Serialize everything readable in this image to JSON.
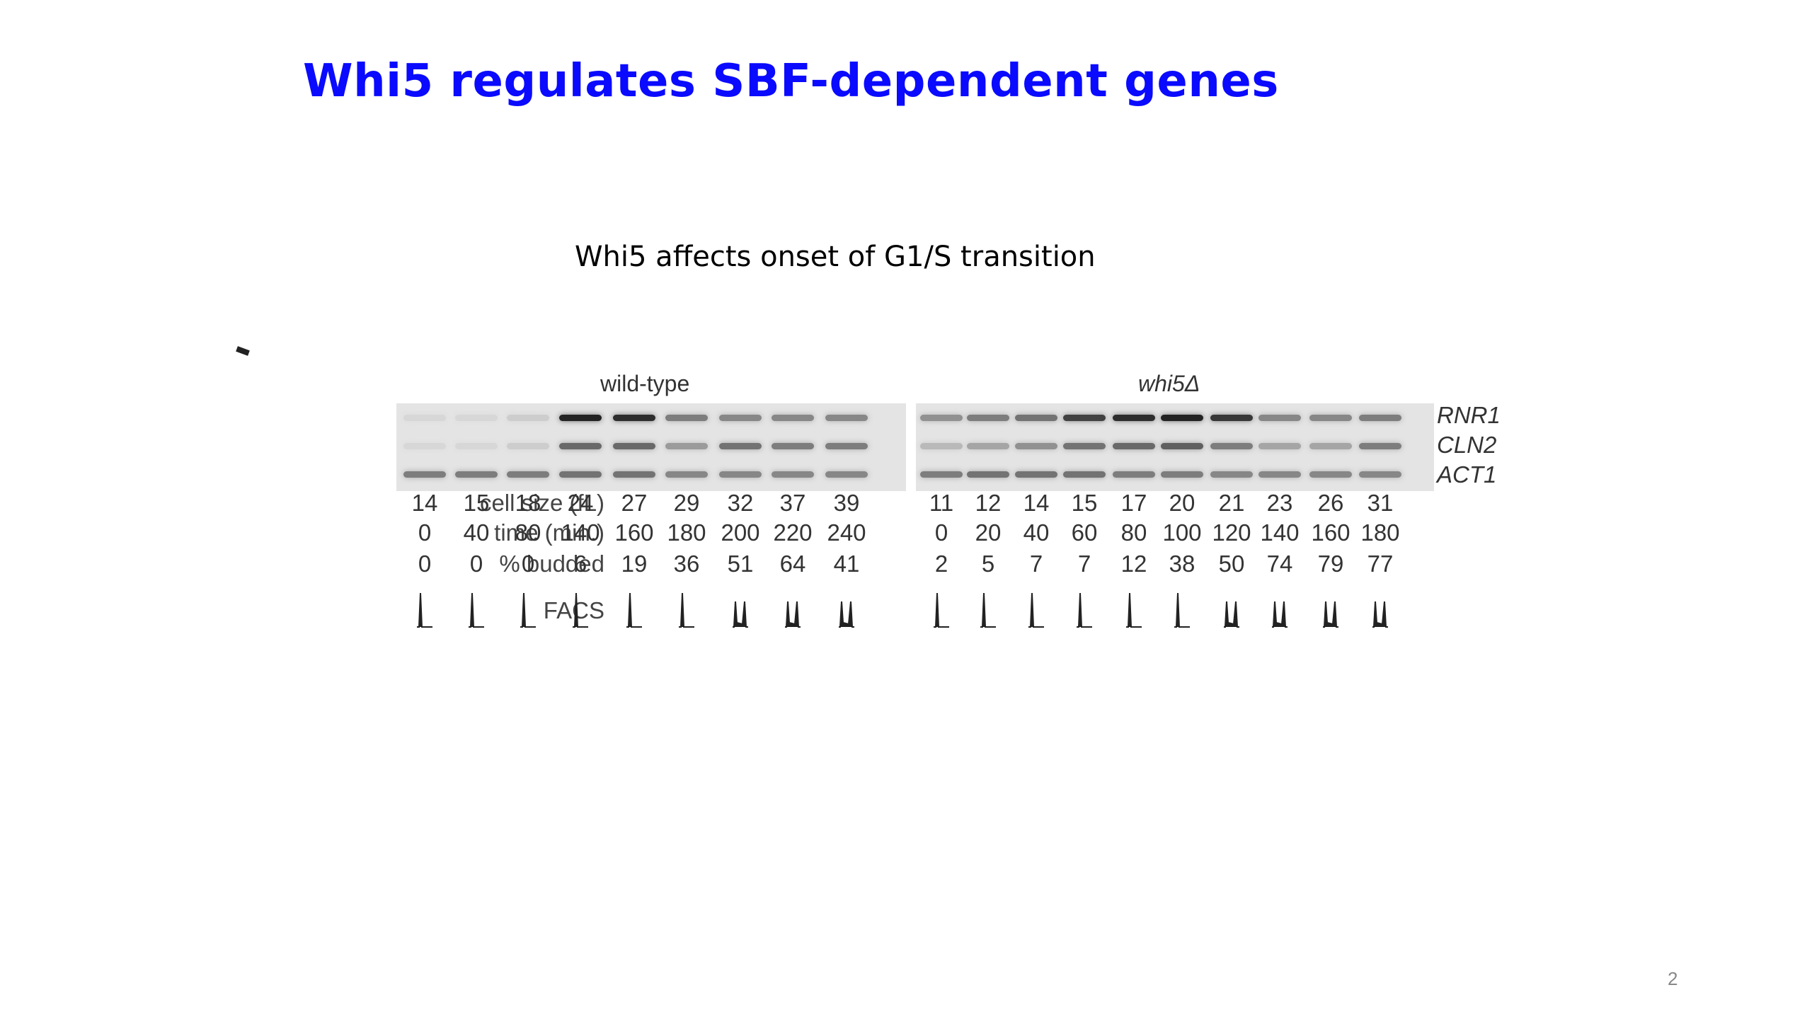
{
  "slide": {
    "title": "Whi5 regulates SBF-dependent genes",
    "subtitle": "Whi5 affects onset of G1/S transition",
    "page_number": "2"
  },
  "figure": {
    "groups": [
      {
        "label": "wild-type",
        "italic": false
      },
      {
        "label": "whi5Δ",
        "italic": true
      }
    ],
    "genes": [
      "RNR1",
      "CLN2",
      "ACT1"
    ],
    "row_labels": {
      "cell_size": "cell size (fL)",
      "time": "time (min.)",
      "budded": "% budded",
      "facs": "FACS"
    },
    "wild_type": {
      "cell_size": [
        "14",
        "15",
        "18",
        "24",
        "27",
        "29",
        "32",
        "37",
        "39"
      ],
      "time": [
        "0",
        "40",
        "80",
        "140",
        "160",
        "180",
        "200",
        "220",
        "240"
      ],
      "budded": [
        "0",
        "0",
        "0",
        "6",
        "19",
        "36",
        "51",
        "64",
        "41"
      ],
      "band_intensity": {
        "RNR1": [
          0.05,
          0.05,
          0.1,
          0.95,
          0.9,
          0.5,
          0.45,
          0.45,
          0.45
        ],
        "CLN2": [
          0.05,
          0.05,
          0.1,
          0.6,
          0.6,
          0.35,
          0.55,
          0.5,
          0.5
        ],
        "ACT1": [
          0.5,
          0.5,
          0.5,
          0.55,
          0.55,
          0.45,
          0.45,
          0.45,
          0.45
        ]
      },
      "facs_profile": [
        "1N",
        "1N",
        "1N",
        "1N",
        "1N",
        "1N",
        "1N+2N",
        "1N+2N",
        "1N+2N"
      ]
    },
    "whi5": {
      "cell_size": [
        "11",
        "12",
        "14",
        "15",
        "17",
        "20",
        "21",
        "23",
        "26",
        "31"
      ],
      "time": [
        "0",
        "20",
        "40",
        "60",
        "80",
        "100",
        "120",
        "140",
        "160",
        "180"
      ],
      "budded": [
        "2",
        "5",
        "7",
        "7",
        "12",
        "38",
        "50",
        "74",
        "79",
        "77"
      ],
      "band_intensity": {
        "RNR1": [
          0.4,
          0.5,
          0.55,
          0.8,
          0.9,
          0.95,
          0.85,
          0.45,
          0.45,
          0.5
        ],
        "CLN2": [
          0.2,
          0.3,
          0.4,
          0.55,
          0.6,
          0.65,
          0.5,
          0.3,
          0.3,
          0.5
        ],
        "ACT1": [
          0.5,
          0.55,
          0.55,
          0.55,
          0.5,
          0.5,
          0.45,
          0.45,
          0.45,
          0.45
        ]
      },
      "facs_profile": [
        "1N",
        "1N",
        "1N",
        "1N",
        "1N",
        "1N",
        "1N+2N",
        "1N+2N",
        "1N+2N",
        "1N+2N"
      ]
    }
  }
}
